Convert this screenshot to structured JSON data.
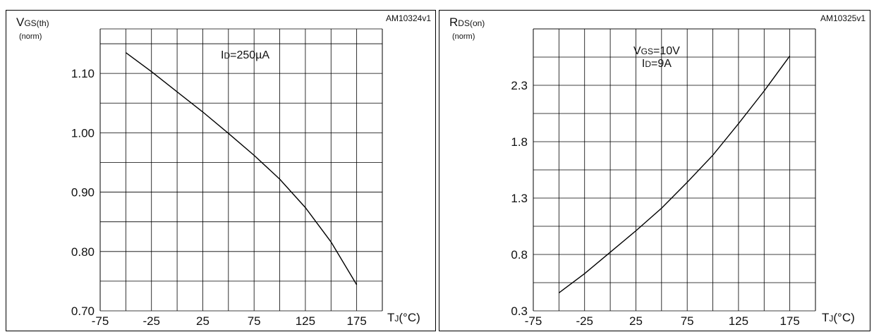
{
  "chart_data": [
    {
      "type": "line",
      "figure_id": "AM10324v1",
      "ylabel_main": "V",
      "ylabel_sub": "GS(th)",
      "ylabel_unit": "(norm)",
      "xlabel_main": "T",
      "xlabel_sub": "J",
      "xlabel_unit": "(°C)",
      "condition_lines": [
        {
          "main": "I",
          "sub": "D",
          "rest": "=250µA"
        }
      ],
      "x_ticks": [
        "-75",
        "-25",
        "25",
        "75",
        "125",
        "175"
      ],
      "y_ticks": [
        "0.70",
        "0.80",
        "0.90",
        "1.00",
        "1.10"
      ],
      "xlim": [
        -75,
        200
      ],
      "ylim": [
        0.7,
        1.175
      ],
      "grid": true,
      "series": [
        {
          "x": [
            -50,
            -25,
            0,
            25,
            50,
            75,
            100,
            125,
            150,
            175
          ],
          "y": [
            1.135,
            1.103,
            1.069,
            1.035,
            0.999,
            0.962,
            0.922,
            0.874,
            0.816,
            0.744
          ]
        }
      ]
    },
    {
      "type": "line",
      "figure_id": "AM10325v1",
      "ylabel_main": "R",
      "ylabel_sub": "DS(on)",
      "ylabel_unit": "(norm)",
      "xlabel_main": "T",
      "xlabel_sub": "J",
      "xlabel_unit": "(°C)",
      "condition_lines": [
        {
          "main": "V",
          "sub": "GS",
          "rest": "=10V"
        },
        {
          "main": "I",
          "sub": "D",
          "rest": "=9A"
        }
      ],
      "x_ticks": [
        "-75",
        "-25",
        "25",
        "75",
        "125",
        "175"
      ],
      "y_ticks": [
        "0.3",
        "0.8",
        "1.3",
        "1.8",
        "2.3"
      ],
      "xlim": [
        -75,
        200
      ],
      "ylim": [
        0.3,
        2.8
      ],
      "grid": true,
      "series": [
        {
          "x": [
            -50,
            -25,
            0,
            25,
            50,
            75,
            100,
            125,
            150,
            175
          ],
          "y": [
            0.46,
            0.63,
            0.82,
            1.01,
            1.21,
            1.44,
            1.68,
            1.96,
            2.25,
            2.56
          ]
        }
      ]
    }
  ]
}
